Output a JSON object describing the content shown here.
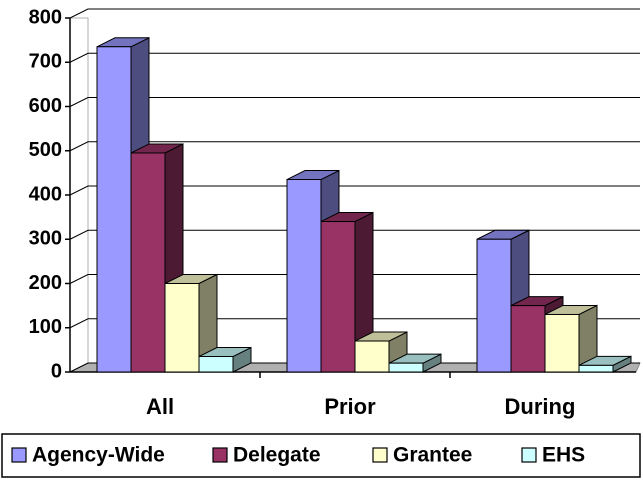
{
  "chart_data": {
    "type": "bar3d",
    "categories": [
      "All",
      "Prior",
      "During"
    ],
    "series": [
      {
        "name": "Agency-Wide",
        "color": "#9999ff",
        "values": [
          735,
          435,
          300
        ]
      },
      {
        "name": "Delegate",
        "color": "#993366",
        "values": [
          495,
          340,
          150
        ]
      },
      {
        "name": "Grantee",
        "color": "#ffffcc",
        "values": [
          200,
          70,
          130
        ]
      },
      {
        "name": "EHS",
        "color": "#ccffff",
        "values": [
          35,
          20,
          15
        ]
      }
    ],
    "ylim": [
      0,
      800
    ],
    "yticks": [
      0,
      100,
      200,
      300,
      400,
      500,
      600,
      700,
      800
    ],
    "grid": true,
    "legend": "bottom"
  }
}
